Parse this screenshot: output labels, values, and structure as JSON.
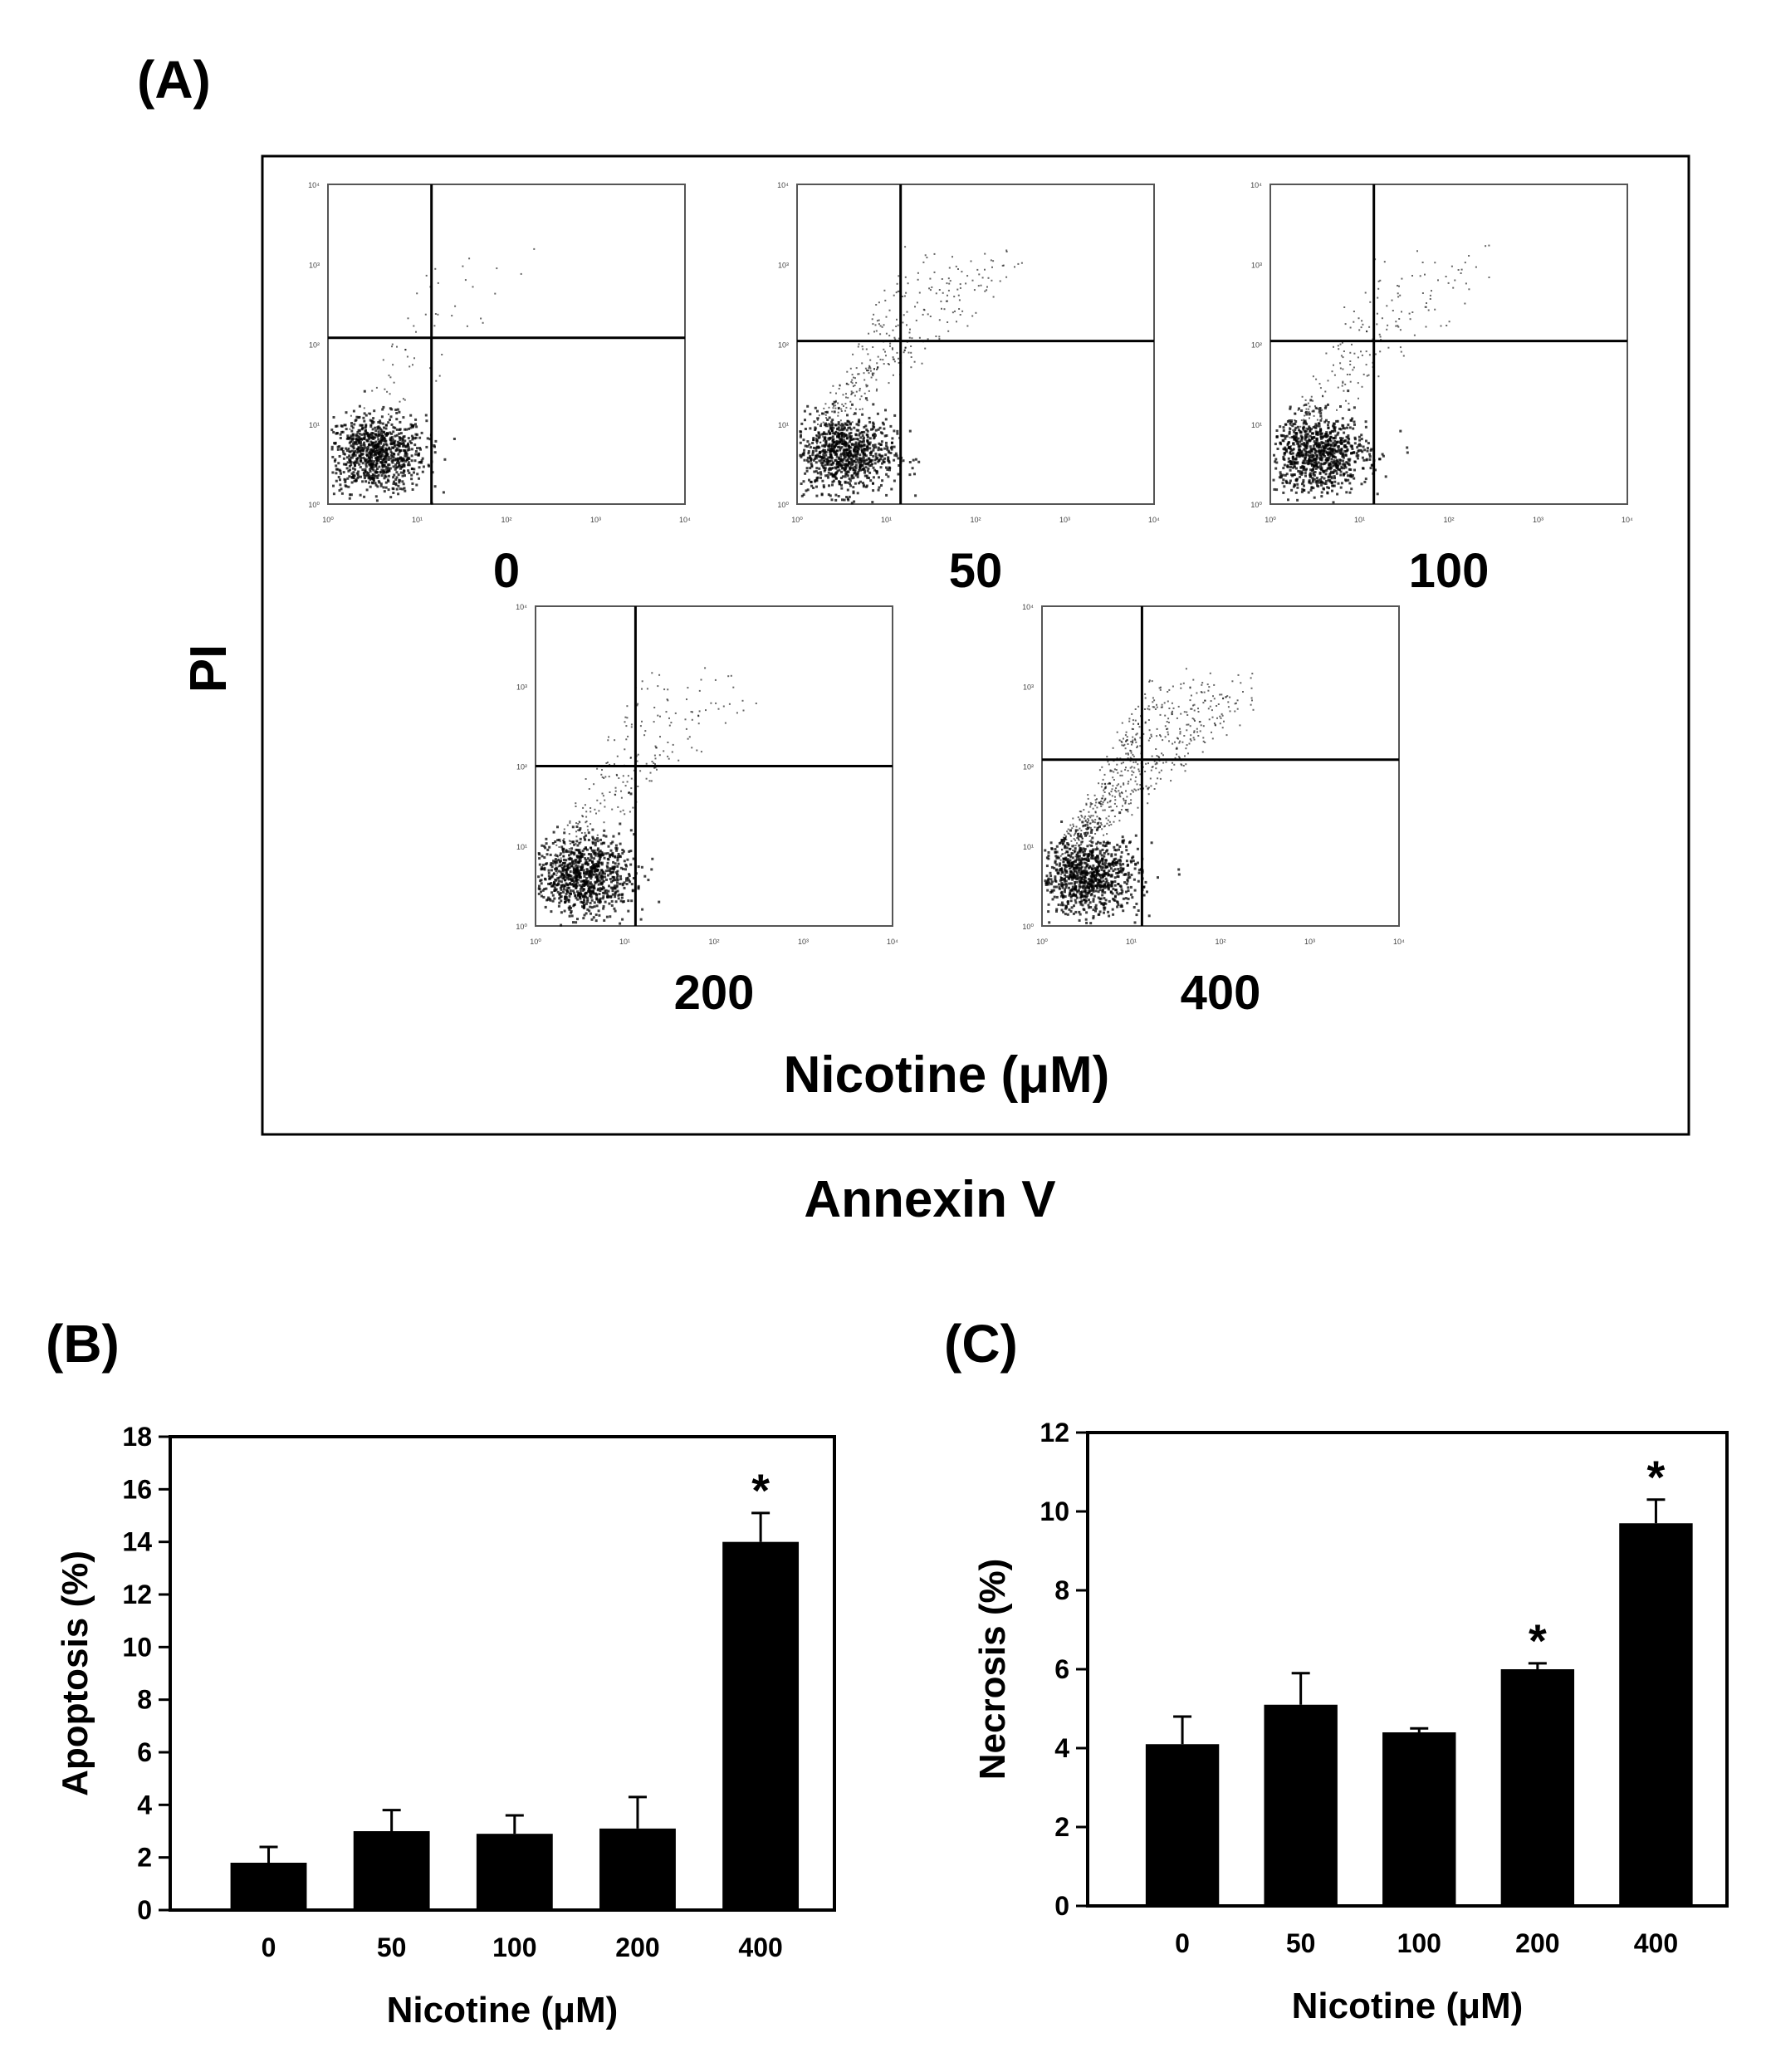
{
  "panel_a": {
    "letter": "(A)",
    "y_label": "PI",
    "conc_axis_label": "Nicotine (μM)",
    "x_label": "Annexin V",
    "scatter_tick_labels": [
      "10⁰",
      "10¹",
      "10²",
      "10³",
      "10⁴"
    ],
    "plots": [
      {
        "label": "0"
      },
      {
        "label": "50"
      },
      {
        "label": "100"
      },
      {
        "label": "200"
      },
      {
        "label": "400"
      }
    ]
  },
  "chart_data": [
    {
      "panel": "(B)",
      "type": "bar",
      "categories": [
        "0",
        "50",
        "100",
        "200",
        "400"
      ],
      "values": [
        1.8,
        3.0,
        2.9,
        3.1,
        14.0
      ],
      "errors": [
        0.6,
        0.8,
        0.7,
        1.2,
        1.1
      ],
      "significant": [
        false,
        false,
        false,
        false,
        true
      ],
      "significance_mark": "*",
      "xlabel": "Nicotine (μM)",
      "ylabel": "Apoptosis (%)",
      "ylim": [
        0,
        18
      ],
      "yticks": [
        0,
        2,
        4,
        6,
        8,
        10,
        12,
        14,
        16,
        18
      ],
      "bar_color": "#000000",
      "grid": false
    },
    {
      "panel": "(C)",
      "type": "bar",
      "categories": [
        "0",
        "50",
        "100",
        "200",
        "400"
      ],
      "values": [
        4.1,
        5.1,
        4.4,
        6.0,
        9.7
      ],
      "errors": [
        0.7,
        0.8,
        0.1,
        0.15,
        0.6
      ],
      "significant": [
        false,
        false,
        false,
        true,
        true
      ],
      "significance_mark": "*",
      "xlabel": "Nicotine (μM)",
      "ylabel": "Necrosis (%)",
      "ylim": [
        0,
        12
      ],
      "yticks": [
        0,
        2,
        4,
        6,
        8,
        10,
        12
      ],
      "bar_color": "#000000",
      "grid": false
    }
  ]
}
